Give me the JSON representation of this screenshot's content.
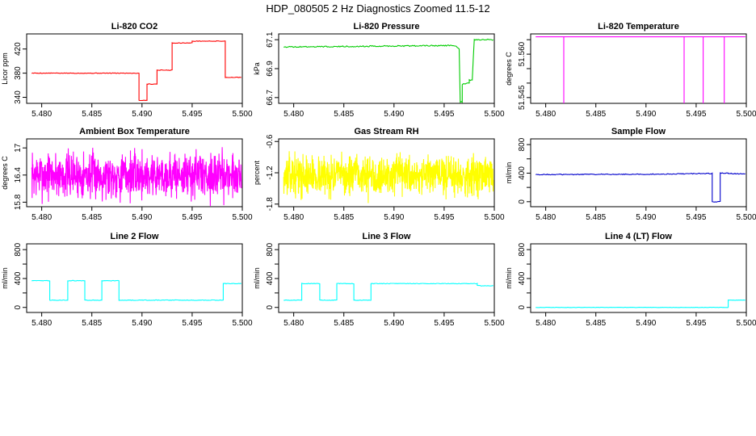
{
  "figure_title": "HDP_080505  2 Hz Diagnostics Zoomed 11.5-12",
  "chart_data": [
    {
      "type": "line",
      "title": "Li-820 CO2",
      "xlabel": "",
      "ylabel": "Licor ppm",
      "color": "#ff0000",
      "xlim": [
        5.4785,
        5.5
      ],
      "ylim": [
        330,
        445
      ],
      "xticks": [
        5.48,
        5.485,
        5.49,
        5.495,
        5.5
      ],
      "yticks": [
        340,
        380,
        420
      ],
      "noise": 0.5,
      "series": [
        {
          "x": [
            5.479,
            5.4897,
            5.4897,
            5.4905,
            5.4905,
            5.4915,
            5.4915,
            5.493,
            5.493,
            5.495,
            5.495,
            5.4983,
            5.4983,
            5.4999
          ],
          "y": [
            380,
            380,
            335,
            335,
            362,
            362,
            385,
            385,
            430,
            430,
            433,
            433,
            373,
            373
          ]
        }
      ]
    },
    {
      "type": "line",
      "title": "Li-820 Pressure",
      "xlabel": "",
      "ylabel": "kPa",
      "color": "#00cc00",
      "xlim": [
        5.4785,
        5.5
      ],
      "ylim": [
        66.66,
        67.14
      ],
      "xticks": [
        5.48,
        5.485,
        5.49,
        5.495,
        5.5
      ],
      "yticks": [
        66.7,
        66.9,
        67.1
      ],
      "noise": 0.004,
      "series": [
        {
          "x": [
            5.479,
            5.496,
            5.4965,
            5.4966,
            5.4968,
            5.4968,
            5.4975,
            5.4975,
            5.4978,
            5.498,
            5.4999
          ],
          "y": [
            67.05,
            67.06,
            67.04,
            66.67,
            66.67,
            66.79,
            66.8,
            66.82,
            66.82,
            67.1,
            67.1
          ]
        }
      ]
    },
    {
      "type": "line",
      "title": "Li-820 Temperature",
      "xlabel": "",
      "ylabel": "degrees C",
      "color": "#ff00ff",
      "xlim": [
        5.4785,
        5.5
      ],
      "ylim": [
        51.543,
        51.567
      ],
      "xticks": [
        5.48,
        5.485,
        5.49,
        5.495,
        5.5
      ],
      "yticks": [
        51.545,
        51.55,
        51.555,
        51.56,
        51.565
      ],
      "ytick_labels_shown": [
        "51.545",
        "51.560"
      ],
      "series": [
        {
          "x": [
            5.479,
            5.4818,
            5.4818,
            5.4818,
            5.4938,
            5.4938,
            5.4938,
            5.4957,
            5.4957,
            5.4957,
            5.4978,
            5.4978,
            5.4978,
            5.4999
          ],
          "y": [
            51.566,
            51.566,
            51.543,
            51.566,
            51.566,
            51.543,
            51.566,
            51.566,
            51.543,
            51.566,
            51.566,
            51.543,
            51.566,
            51.566
          ]
        }
      ]
    },
    {
      "type": "line",
      "title": "Ambient Box Temperature",
      "xlabel": "",
      "ylabel": "degrees C",
      "color": "#ff00ff",
      "xlim": [
        5.4785,
        5.5
      ],
      "ylim": [
        15.7,
        17.2
      ],
      "xticks": [
        5.48,
        5.485,
        5.49,
        5.495,
        5.5
      ],
      "yticks": [
        15.8,
        16.4,
        17.0
      ],
      "noisy": {
        "center": 16.4,
        "amp": 0.75,
        "seed": 7
      },
      "series": [
        {
          "x": [
            5.479,
            5.4999
          ],
          "y": [
            16.4,
            16.4
          ]
        }
      ]
    },
    {
      "type": "line",
      "title": "Gas Stream RH",
      "xlabel": "",
      "ylabel": "percent",
      "color": "#ffff00",
      "xlim": [
        5.4785,
        5.5
      ],
      "ylim": [
        -1.85,
        -0.55
      ],
      "xticks": [
        5.48,
        5.485,
        5.49,
        5.495,
        5.5
      ],
      "yticks": [
        -1.8,
        -1.2,
        -0.6
      ],
      "ytick_labels_shown": [
        "-1.8",
        "-1.2",
        "-0.6"
      ],
      "noisy": {
        "center": -1.25,
        "amp": 0.55,
        "seed": 13
      },
      "series": [
        {
          "x": [
            5.479,
            5.4999
          ],
          "y": [
            -1.25,
            -1.25
          ]
        }
      ]
    },
    {
      "type": "line",
      "title": "Sample Flow",
      "xlabel": "",
      "ylabel": "ml/min",
      "color": "#0000cc",
      "xlim": [
        5.4785,
        5.5
      ],
      "ylim": [
        -70,
        880
      ],
      "xticks": [
        5.48,
        5.485,
        5.49,
        5.495,
        5.5
      ],
      "yticks": [
        0,
        200,
        400,
        600,
        800
      ],
      "ytick_labels_shown": [
        "0",
        "400",
        "800"
      ],
      "noise": 6,
      "series": [
        {
          "x": [
            5.479,
            5.49,
            5.4966,
            5.4966,
            5.4973,
            5.4974,
            5.4974,
            5.4982,
            5.4982,
            5.4999
          ],
          "y": [
            380,
            385,
            395,
            0,
            0,
            0,
            400,
            400,
            395,
            390
          ]
        }
      ]
    },
    {
      "type": "line",
      "title": "Line 2 Flow",
      "xlabel": "",
      "ylabel": "ml/min",
      "color": "#00ffff",
      "xlim": [
        5.4785,
        5.5
      ],
      "ylim": [
        -70,
        880
      ],
      "xticks": [
        5.48,
        5.485,
        5.49,
        5.495,
        5.5
      ],
      "yticks": [
        0,
        200,
        400,
        600,
        800
      ],
      "ytick_labels_shown": [
        "0",
        "400",
        "800"
      ],
      "noise": 4,
      "series": [
        {
          "x": [
            5.479,
            5.4808,
            5.4808,
            5.4826,
            5.4826,
            5.4843,
            5.4843,
            5.486,
            5.486,
            5.4877,
            5.4877,
            5.4981,
            5.4981,
            5.4999
          ],
          "y": [
            370,
            370,
            100,
            100,
            370,
            370,
            100,
            100,
            370,
            370,
            100,
            100,
            330,
            330
          ]
        }
      ]
    },
    {
      "type": "line",
      "title": "Line 3 Flow",
      "xlabel": "",
      "ylabel": "ml/min",
      "color": "#00ffff",
      "xlim": [
        5.4785,
        5.5
      ],
      "ylim": [
        -70,
        880
      ],
      "xticks": [
        5.48,
        5.485,
        5.49,
        5.495,
        5.5
      ],
      "yticks": [
        0,
        200,
        400,
        600,
        800
      ],
      "ytick_labels_shown": [
        "0",
        "400",
        "800"
      ],
      "noise": 4,
      "series": [
        {
          "x": [
            5.479,
            5.4808,
            5.4808,
            5.4826,
            5.4826,
            5.4843,
            5.4843,
            5.486,
            5.486,
            5.4877,
            5.4877,
            5.4983,
            5.4983,
            5.4999
          ],
          "y": [
            100,
            100,
            330,
            330,
            100,
            100,
            330,
            330,
            100,
            100,
            330,
            330,
            300,
            300
          ]
        }
      ]
    },
    {
      "type": "line",
      "title": "Line 4 (LT) Flow",
      "xlabel": "",
      "ylabel": "ml/min",
      "color": "#00ffff",
      "xlim": [
        5.4785,
        5.5
      ],
      "ylim": [
        -70,
        880
      ],
      "xticks": [
        5.48,
        5.485,
        5.49,
        5.495,
        5.5
      ],
      "yticks": [
        0,
        200,
        400,
        600,
        800
      ],
      "ytick_labels_shown": [
        "0",
        "400",
        "800"
      ],
      "noise": 2,
      "series": [
        {
          "x": [
            5.479,
            5.4982,
            5.4982,
            5.4999
          ],
          "y": [
            0,
            0,
            100,
            100
          ]
        }
      ]
    }
  ]
}
